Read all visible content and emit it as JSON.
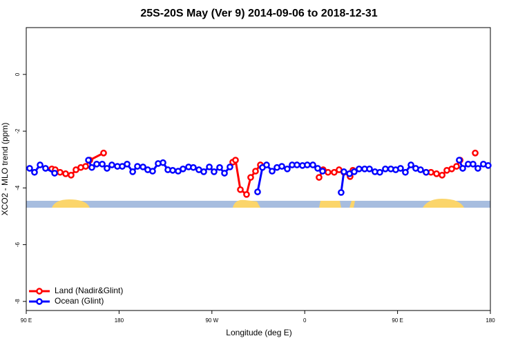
{
  "chart_data": {
    "type": "line",
    "title": "25S-20S May (Ver 9)   2014-09-06 to 2018-12-31",
    "x_label": "Longitude (deg E)",
    "y_label": "XCO2 - MLO trend (ppm)",
    "xlim": [
      90,
      540
    ],
    "ylim": [
      -8.32,
      1.65
    ],
    "xticks": [
      {
        "value": 90,
        "label": "90 E"
      },
      180,
      {
        "value": 270,
        "label": "90 W"
      },
      {
        "value": 360,
        "label": "0"
      },
      {
        "value": 450,
        "label": "90 E"
      },
      {
        "value": 540,
        "label": "180"
      }
    ],
    "yticks": [
      0,
      -2,
      -4,
      -6,
      -8
    ],
    "legend": "bottom-left",
    "grid": false,
    "series": [
      {
        "name": "Land (Nadir&Glint)",
        "color": "#ff0000",
        "x": [
          114.8,
          118.1,
          122.8,
          128.2,
          133.5,
          138.2,
          142.9,
          147.6,
          151.6,
          165,
          null,
          290.2,
          292.9,
          297.6,
          303.6,
          307.6,
          312.3,
          317,
          null,
          373.9,
          377.9,
          382.6,
          388.6,
          393.3,
          398,
          404,
          406.7,
          null,
          477.7,
          482.4,
          487.8,
          493.2,
          497.8,
          502.5,
          507.2,
          510.6,
          null,
          525.3
        ],
        "values": [
          -3.33,
          -3.36,
          -3.45,
          -3.5,
          -3.55,
          -3.36,
          -3.28,
          -3.24,
          -3.02,
          -2.77,
          null,
          -3.09,
          -3.02,
          -4.06,
          -4.23,
          -3.63,
          -3.41,
          -3.19,
          null,
          -3.63,
          -3.36,
          -3.45,
          -3.45,
          -3.36,
          -3.45,
          -3.6,
          -3.38,
          null,
          -3.45,
          -3.45,
          -3.5,
          -3.55,
          -3.38,
          -3.33,
          -3.24,
          -3.02,
          null,
          -2.77
        ]
      },
      {
        "name": "Ocean (Glint)",
        "color": "#0000ff",
        "x": [
          93.3,
          98,
          103.4,
          108.7,
          117.5,
          null,
          150.3,
          153.6,
          158.3,
          163.7,
          168.3,
          173,
          178.4,
          183.1,
          187.8,
          193.2,
          197.8,
          203.2,
          207.8,
          212.5,
          217.9,
          222.6,
          227.3,
          232,
          237.3,
          242,
          247.4,
          252,
          257.4,
          262.1,
          267.5,
          272.1,
          277.5,
          282.2,
          287.5,
          null,
          314.3,
          319,
          323,
          328.4,
          333.1,
          337.8,
          343.1,
          347.8,
          352.5,
          357.8,
          362.5,
          367.9,
          372.6,
          377.3,
          null,
          395.3,
          398,
          403.4,
          408,
          412.7,
          418.1,
          422.8,
          428.1,
          432.8,
          438.2,
          443.5,
          448.2,
          452.9,
          457.6,
          463,
          467.6,
          472.3,
          477.7,
          null,
          509.8,
          513.2,
          518.5,
          523.2,
          527.9,
          533.2,
          537.9
        ],
        "values": [
          -3.31,
          -3.45,
          -3.19,
          -3.31,
          -3.48,
          null,
          -3.02,
          -3.28,
          -3.16,
          -3.16,
          -3.31,
          -3.19,
          -3.24,
          -3.24,
          -3.16,
          -3.43,
          -3.24,
          -3.26,
          -3.36,
          -3.41,
          -3.14,
          -3.11,
          -3.36,
          -3.38,
          -3.41,
          -3.33,
          -3.26,
          -3.28,
          -3.36,
          -3.43,
          -3.26,
          -3.43,
          -3.28,
          -3.48,
          -3.26,
          null,
          -4.14,
          -3.28,
          -3.19,
          -3.41,
          -3.28,
          -3.24,
          -3.33,
          -3.19,
          -3.19,
          -3.21,
          -3.19,
          -3.19,
          -3.31,
          -3.41,
          null,
          -4.16,
          -3.43,
          -3.5,
          -3.43,
          -3.33,
          -3.33,
          -3.33,
          -3.43,
          -3.45,
          -3.33,
          -3.33,
          -3.36,
          -3.31,
          -3.45,
          -3.19,
          -3.31,
          -3.36,
          -3.45,
          null,
          -3.02,
          -3.31,
          -3.16,
          -3.16,
          -3.31,
          -3.16,
          -3.21
        ]
      }
    ]
  }
}
